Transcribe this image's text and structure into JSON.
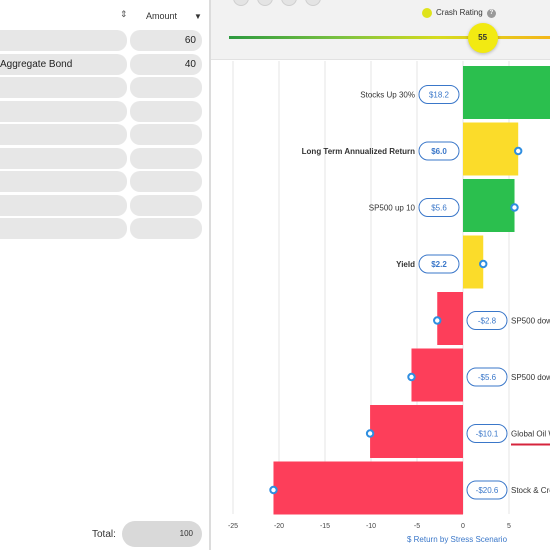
{
  "holdings": {
    "amount_header": "Amount",
    "rows": [
      {
        "name": "",
        "amount": "60"
      },
      {
        "name": "Aggregate Bond",
        "amount": "40"
      },
      {
        "name": "",
        "amount": ""
      },
      {
        "name": "",
        "amount": ""
      },
      {
        "name": "",
        "amount": ""
      },
      {
        "name": "",
        "amount": ""
      },
      {
        "name": "",
        "amount": ""
      },
      {
        "name": "",
        "amount": ""
      },
      {
        "name": "",
        "amount": ""
      }
    ],
    "total_label": "Total:",
    "total_value": "100"
  },
  "crash_rating": {
    "label": "Crash Rating",
    "value": "55",
    "fraction": 0.79,
    "accent": "#dfe31b"
  },
  "chart_data": {
    "type": "bar",
    "orientation": "horizontal",
    "title": "",
    "xlabel": "$ Return by Stress Scenario",
    "xlim": [
      -27,
      8
    ],
    "xticks": [
      -25,
      -20,
      -15,
      -10,
      -5,
      0,
      5
    ],
    "grid": true,
    "series": [
      {
        "categories": [
          "Stocks Up 30%",
          "Long Term Annualized Return",
          "SP500 up 10",
          "Yield",
          "SP500 dow",
          "SP500 dow",
          "Global Oil W",
          "Stock & Cre"
        ],
        "values": [
          18.2,
          6.0,
          5.6,
          2.2,
          -2.8,
          -5.6,
          -10.1,
          -20.6
        ],
        "value_labels": [
          "$18.2",
          "$6.0",
          "$5.6",
          "$2.2",
          "-$2.8",
          "-$5.6",
          "-$10.1",
          "-$20.6"
        ],
        "bold": [
          false,
          true,
          false,
          true,
          false,
          false,
          false,
          false
        ],
        "colors": [
          "#2bbf4e",
          "#fbdc2a",
          "#2bbf4e",
          "#fbdc2a",
          "#fd3e5a",
          "#fd3e5a",
          "#fd3e5a",
          "#fd3e5a"
        ],
        "underline": [
          false,
          false,
          false,
          false,
          false,
          false,
          true,
          false
        ]
      }
    ],
    "underline_color": "#d6243c"
  }
}
